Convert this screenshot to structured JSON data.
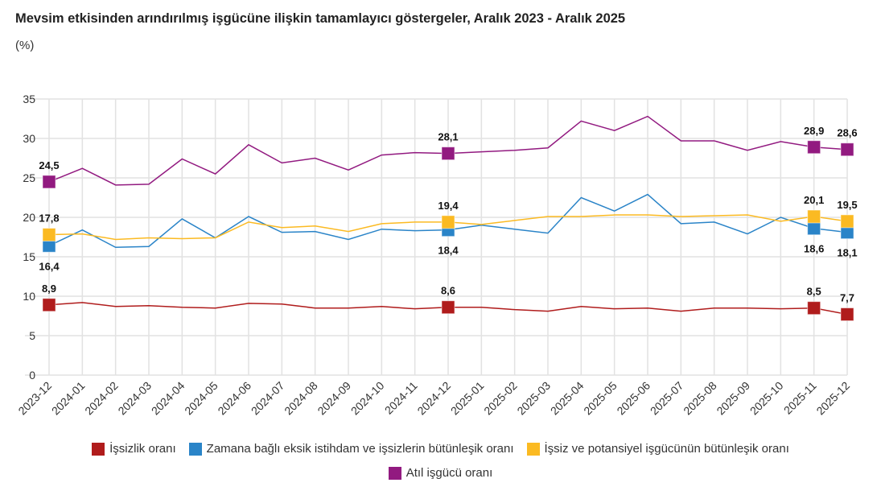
{
  "chart_data": {
    "type": "line",
    "title": "Mevsim etkisinden arındırılmış işgücüne ilişkin tamamlayıcı göstergeler, Aralık 2023 - Aralık 2025",
    "unit": "(%)",
    "ylim": [
      0,
      35
    ],
    "yticks": [
      "0",
      "5",
      "10",
      "15",
      "20",
      "25",
      "30",
      "35"
    ],
    "grid": true,
    "legend_position": "bottom",
    "categories": [
      "2023-12",
      "2024-01",
      "2024-02",
      "2024-03",
      "2024-04",
      "2024-05",
      "2024-06",
      "2024-07",
      "2024-08",
      "2024-09",
      "2024-10",
      "2024-11",
      "2024-12",
      "2025-01",
      "2025-02",
      "2025-03",
      "2025-04",
      "2025-05",
      "2025-06",
      "2025-07",
      "2025-08",
      "2025-09",
      "2025-10",
      "2025-11",
      "2025-12"
    ],
    "series": [
      {
        "name": "İşsizlik oranı",
        "color": "#b01c1c",
        "values": [
          8.9,
          9.2,
          8.7,
          8.8,
          8.6,
          8.5,
          9.1,
          9.0,
          8.5,
          8.5,
          8.7,
          8.4,
          8.6,
          8.6,
          8.3,
          8.1,
          8.7,
          8.4,
          8.5,
          8.1,
          8.5,
          8.5,
          8.4,
          8.5,
          7.7
        ],
        "labels": {
          "0": "8,9",
          "12": "8,6",
          "23": "8,5",
          "24": "7,7"
        },
        "label_pos": "above"
      },
      {
        "name": "Zamana bağlı eksik istihdam ve işsizlerin bütünleşik oranı",
        "color": "#2a84c8",
        "values": [
          16.4,
          18.4,
          16.2,
          16.3,
          19.8,
          17.4,
          20.1,
          18.1,
          18.2,
          17.2,
          18.5,
          18.3,
          18.4,
          19.0,
          18.5,
          18.0,
          22.5,
          20.8,
          22.9,
          19.2,
          19.4,
          17.9,
          20.0,
          18.6,
          18.1
        ],
        "labels": {
          "0": "16,4",
          "12": "18,4",
          "23": "18,6",
          "24": "18,1"
        },
        "label_pos": "below"
      },
      {
        "name": "İşsiz ve potansiyel işgücünün bütünleşik oranı",
        "color": "#fbba22",
        "values": [
          17.8,
          17.9,
          17.2,
          17.4,
          17.3,
          17.4,
          19.4,
          18.7,
          18.9,
          18.2,
          19.2,
          19.4,
          19.4,
          19.1,
          19.6,
          20.1,
          20.1,
          20.3,
          20.3,
          20.1,
          20.2,
          20.3,
          19.5,
          20.1,
          19.5
        ],
        "labels": {
          "0": "17,8",
          "12": "19,4",
          "23": "20,1",
          "24": "19,5"
        },
        "label_pos": "above"
      },
      {
        "name": "Atıl işgücü oranı",
        "color": "#921a80",
        "values": [
          24.5,
          26.2,
          24.1,
          24.2,
          27.4,
          25.5,
          29.2,
          26.9,
          27.5,
          26.0,
          27.9,
          28.2,
          28.1,
          28.3,
          28.5,
          28.8,
          32.2,
          31.0,
          32.8,
          29.7,
          29.7,
          28.5,
          29.6,
          28.9,
          28.6
        ],
        "labels": {
          "0": "24,5",
          "12": "28,1",
          "23": "28,9",
          "24": "28,6"
        },
        "label_pos": "above"
      }
    ]
  }
}
